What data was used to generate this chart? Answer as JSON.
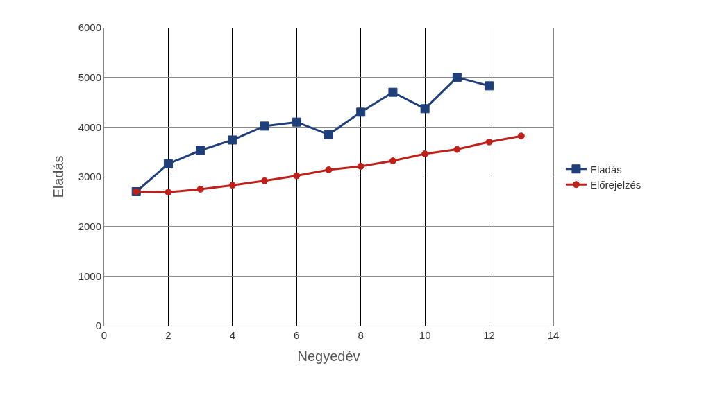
{
  "chart_data": {
    "type": "line",
    "xlabel": "Negyedév",
    "ylabel": "Eladás",
    "xlim": [
      0,
      14
    ],
    "xticks": [
      0,
      2,
      4,
      6,
      8,
      10,
      12,
      14
    ],
    "ylim": [
      0,
      6000
    ],
    "yticks": [
      0,
      1000,
      2000,
      3000,
      4000,
      5000,
      6000
    ],
    "grid": true,
    "legend": "right",
    "line_style": "solid",
    "series": [
      {
        "name": "Eladás",
        "color": "#1f3f7a",
        "marker": "square",
        "x": [
          1,
          2,
          3,
          4,
          5,
          6,
          7,
          8,
          9,
          10,
          11,
          12
        ],
        "values": [
          2700,
          3260,
          3530,
          3740,
          4020,
          4100,
          3850,
          4300,
          4700,
          4370,
          5000,
          4830
        ]
      },
      {
        "name": "Előrejelzés",
        "color": "#c0201a",
        "marker": "circle",
        "x": [
          1,
          2,
          3,
          4,
          5,
          6,
          7,
          8,
          9,
          10,
          11,
          12,
          13
        ],
        "values": [
          2700,
          2690,
          2750,
          2830,
          2920,
          3020,
          3140,
          3210,
          3320,
          3460,
          3550,
          3700,
          3820
        ]
      }
    ]
  }
}
